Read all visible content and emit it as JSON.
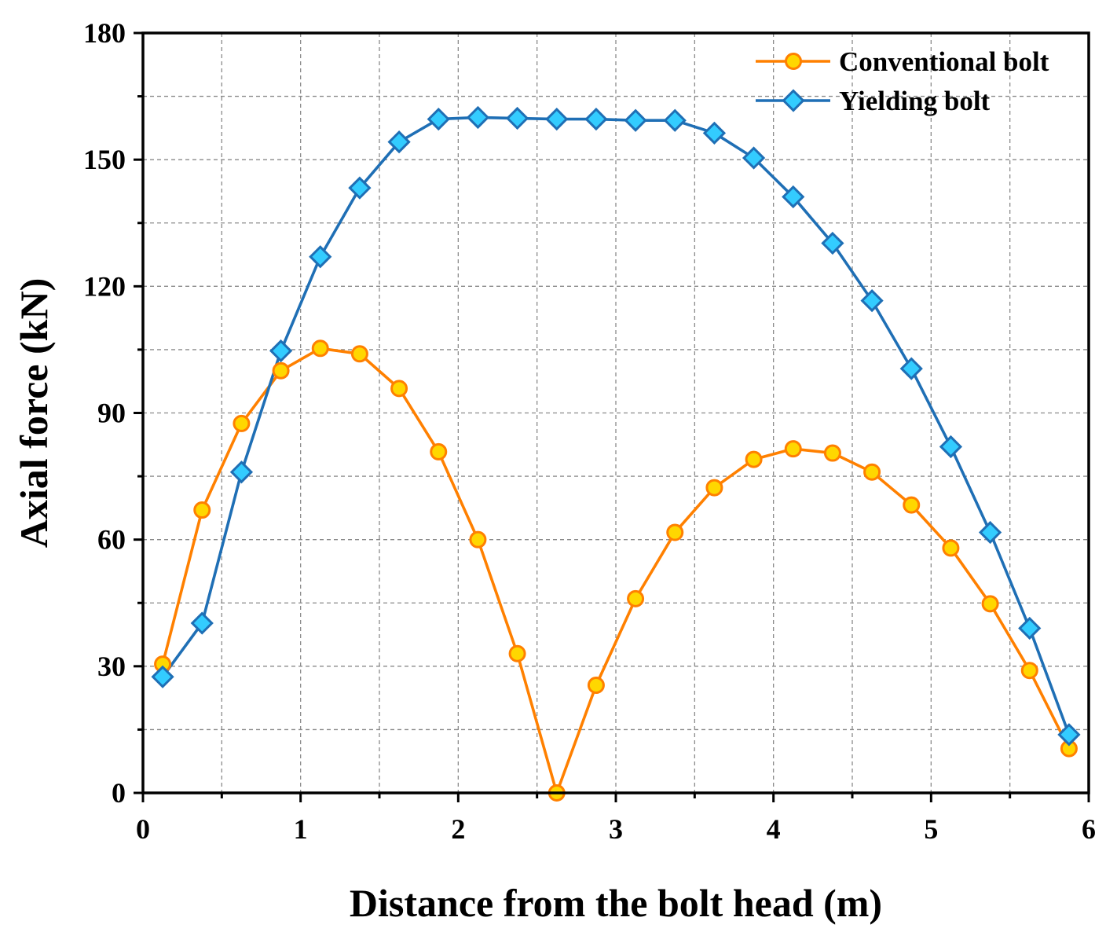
{
  "chart_data": {
    "type": "line",
    "title": "",
    "xlabel": "Distance from the bolt head (m)",
    "ylabel": "Axial force (kN)",
    "xlim": [
      0,
      6
    ],
    "ylim": [
      0,
      180
    ],
    "xticks": [
      0,
      1,
      2,
      3,
      4,
      5,
      6
    ],
    "yticks": [
      0,
      30,
      60,
      90,
      120,
      150,
      180
    ],
    "grid": true,
    "legend_position": "top-right",
    "x": [
      0.125,
      0.375,
      0.625,
      0.875,
      1.125,
      1.375,
      1.625,
      1.875,
      2.125,
      2.375,
      2.625,
      2.875,
      3.125,
      3.375,
      3.625,
      3.875,
      4.125,
      4.375,
      4.625,
      4.875,
      5.125,
      5.375,
      5.625,
      5.875
    ],
    "series": [
      {
        "name": "Conventional bolt",
        "color": "#ff8000",
        "marker": "circle",
        "marker_fill": "#ffd700",
        "values": [
          30.5,
          67,
          87.5,
          100,
          105.3,
          104,
          95.8,
          80.8,
          60,
          33,
          0,
          25.5,
          46,
          61.7,
          72.3,
          79,
          81.5,
          80.5,
          76,
          68.2,
          58,
          44.8,
          29,
          10.5
        ]
      },
      {
        "name": "Yielding bolt",
        "color": "#1f6fb5",
        "marker": "diamond",
        "marker_fill": "#33ccff",
        "values": [
          27.5,
          40.2,
          76,
          104.7,
          127,
          143.3,
          154.2,
          159.6,
          160,
          159.8,
          159.6,
          159.6,
          159.3,
          159.3,
          156.3,
          150.4,
          141.2,
          130.2,
          116.6,
          100.5,
          82,
          61.7,
          39,
          13.8
        ]
      }
    ]
  }
}
